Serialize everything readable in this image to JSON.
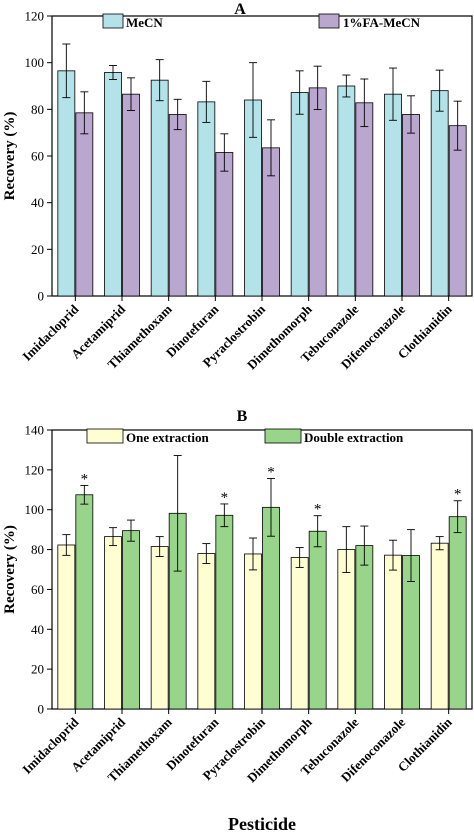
{
  "chart_data": [
    {
      "type": "bar",
      "panel_label": "A",
      "ylabel": "Recovery (%)",
      "ylim": [
        0,
        120
      ],
      "yticks": [
        0,
        20,
        40,
        60,
        80,
        100,
        120
      ],
      "legend_position": "top",
      "categories": [
        "Imidacloprid",
        "Acetamiprid",
        "Thiamethoxam",
        "Dinotefuran",
        "Pyraclostrobin",
        "Dimethomorph",
        "Tebuconazole",
        "Difenoconazole",
        "Clothianidin"
      ],
      "series": [
        {
          "name": "MeCN",
          "color": "#b3e3e8",
          "values": [
            96.5,
            95.8,
            92.5,
            83.2,
            84,
            87.2,
            90,
            86.5,
            88
          ],
          "errors": [
            11.5,
            3,
            8.8,
            8.8,
            16,
            9.3,
            4.7,
            11.2,
            8.8
          ],
          "marks": [
            "",
            "",
            "",
            "",
            "",
            "",
            "",
            "",
            ""
          ]
        },
        {
          "name": "1%FA-MeCN",
          "color": "#b9a7cf",
          "values": [
            78.5,
            86.5,
            77.8,
            61.5,
            63.5,
            89.2,
            82.8,
            77.8,
            73
          ],
          "errors": [
            9,
            7,
            6.5,
            8,
            12,
            9.3,
            10.2,
            8,
            10.5
          ],
          "marks": [
            "",
            "",
            "",
            "",
            "",
            "",
            "",
            "",
            ""
          ]
        }
      ]
    },
    {
      "type": "bar",
      "panel_label": "B",
      "xlabel": "Pesticide",
      "ylabel": "Recovery (%)",
      "ylim": [
        0,
        140
      ],
      "yticks": [
        0,
        20,
        40,
        60,
        80,
        100,
        120,
        140
      ],
      "legend_position": "top",
      "categories": [
        "Imidacloprid",
        "Acetamiprid",
        "Thiamethoxam",
        "Dinotefuran",
        "Pyraclostrobin",
        "Dimethomorph",
        "Tebuconazole",
        "Difenoconazole",
        "Clothianidin"
      ],
      "series": [
        {
          "name": "One extraction",
          "color": "#fefed2",
          "values": [
            82.3,
            86.5,
            81.5,
            78,
            77.8,
            76,
            80,
            77.2,
            83.2
          ],
          "errors": [
            5.2,
            4.5,
            5,
            5,
            8,
            5,
            11.5,
            7.5,
            3.3
          ],
          "marks": [
            "",
            "",
            "",
            "",
            "",
            "",
            "",
            "",
            ""
          ]
        },
        {
          "name": "Double extraction",
          "color": "#98d48a",
          "values": [
            107.5,
            89.5,
            98.2,
            97.2,
            101.2,
            89.2,
            82,
            77,
            96.5
          ],
          "errors": [
            4.7,
            5.3,
            29,
            5.7,
            14.5,
            7.8,
            9.8,
            13,
            8
          ],
          "marks": [
            "*",
            "",
            "",
            "*",
            "*",
            "*",
            "",
            "",
            "*"
          ]
        }
      ]
    }
  ]
}
